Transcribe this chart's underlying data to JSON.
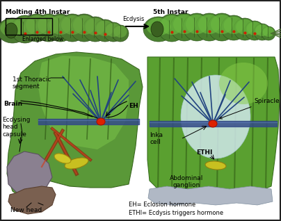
{
  "fig_width": 4.04,
  "fig_height": 3.18,
  "dpi": 100,
  "bg_color": "#d0d0d0",
  "white": "#ffffff",
  "border_color": "#222222",
  "labels": {
    "top_left": "Molting 4th Instar",
    "top_right": "5th Instar",
    "arrow_label": "Ecdysis",
    "enlarged": "Enlarged below",
    "thoracic": "1st Thoracic\nsegment",
    "brain": "Brain",
    "ecdysing": "Ecdysing\nhead\ncapsule",
    "new_head": "New head",
    "EH": "EH",
    "spiracle": "Spiracle",
    "inka_cell": "Inka\ncell",
    "ETHI": "ETHI",
    "abdominal": "Abdominal\nganglion",
    "legend1": "EH= Eclosion hormone",
    "legend2": "ETHI= Ecdysis triggers hormone"
  },
  "caterpillar_green": "#5a8c3c",
  "caterpillar_dark": "#3a6020",
  "nerve_blue": "#334488",
  "nerve_dark": "#112266",
  "red_cell": "#cc2200",
  "yellow_organ": "#c8b820",
  "brown_head": "#6a4020",
  "gray_head": "#9090a0",
  "white_center": "#c8dce0"
}
